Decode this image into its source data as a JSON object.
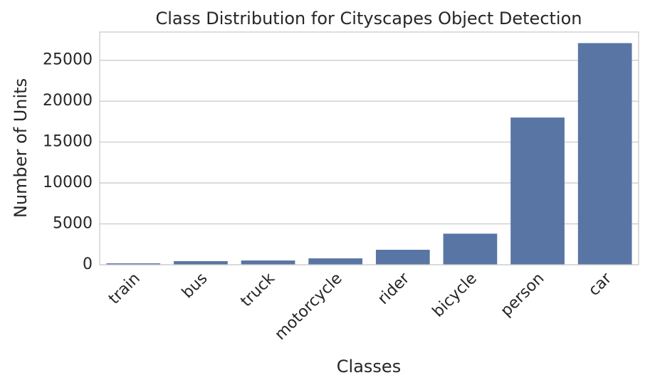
{
  "chart_data": {
    "type": "bar",
    "title": "Class Distribution for Cityscapes Object Detection",
    "x_label": "Classes",
    "y_label": "Number of Units",
    "categories": [
      "train",
      "bus",
      "truck",
      "motorcycle",
      "rider",
      "bicycle",
      "person",
      "car"
    ],
    "values": [
      170,
      440,
      520,
      780,
      1830,
      3800,
      18000,
      27100
    ],
    "color": "#5875a4",
    "ylim": [
      0,
      28455
    ],
    "yticks": [
      0,
      5000,
      10000,
      15000,
      20000,
      25000
    ],
    "grid": true
  }
}
